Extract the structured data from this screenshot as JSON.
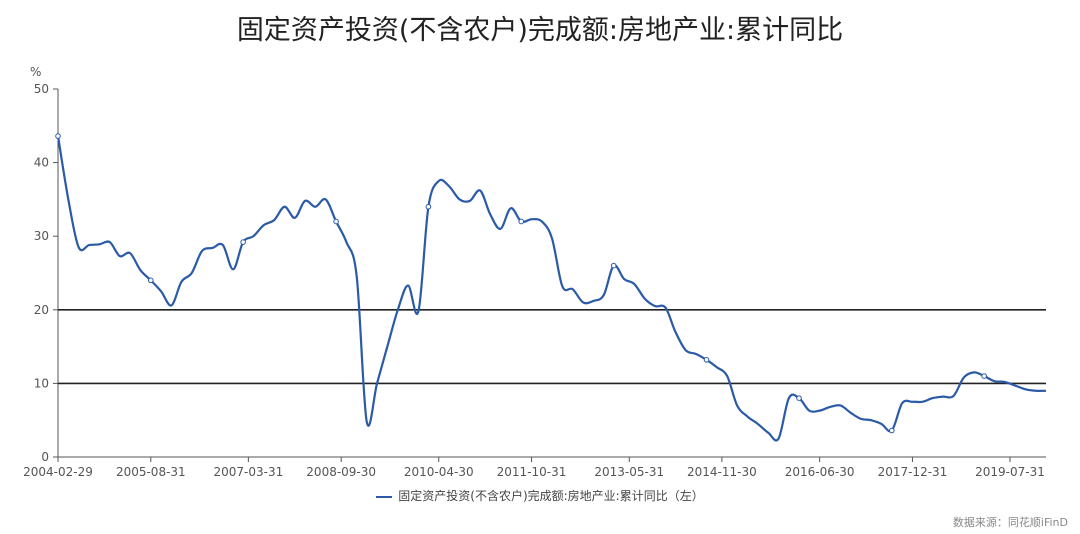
{
  "title": "固定资产投资(不含农户)完成额:房地产业:累计同比",
  "source": "数据来源：同花顺iFinD",
  "chart_data": {
    "type": "line",
    "ylabel": "%",
    "ylim": [
      0,
      50
    ],
    "yticks": [
      0,
      10,
      20,
      30,
      40,
      50
    ],
    "xlim": [
      "2004-02-29",
      "2020-02-29"
    ],
    "xticks": [
      "2004-02-29",
      "2005-08-31",
      "2007-03-31",
      "2008-09-30",
      "2010-04-30",
      "2011-10-31",
      "2013-05-31",
      "2014-11-30",
      "2016-06-30",
      "2017-12-31",
      "2019-07-31"
    ],
    "reference_lines": [
      10,
      20
    ],
    "grid": false,
    "legend_position": "bottom-center",
    "series": [
      {
        "name": "固定资产投资(不含农户)完成额:房地产业:累计同比（左）",
        "color": "#2b5aa7",
        "x": [
          "2004-02-29",
          "2004-04-30",
          "2004-06-30",
          "2004-08-31",
          "2004-10-31",
          "2004-12-31",
          "2005-02-28",
          "2005-04-30",
          "2005-06-30",
          "2005-08-31",
          "2005-10-31",
          "2005-12-31",
          "2006-02-28",
          "2006-04-30",
          "2006-06-30",
          "2006-08-31",
          "2006-10-31",
          "2006-12-31",
          "2007-02-28",
          "2007-04-30",
          "2007-06-30",
          "2007-08-31",
          "2007-10-31",
          "2007-12-31",
          "2008-02-29",
          "2008-04-30",
          "2008-06-30",
          "2008-08-31",
          "2008-10-31",
          "2008-12-31",
          "2009-02-28",
          "2009-04-30",
          "2009-06-30",
          "2009-08-31",
          "2009-10-31",
          "2009-12-31",
          "2010-02-28",
          "2010-04-30",
          "2010-06-30",
          "2010-08-31",
          "2010-10-31",
          "2010-12-31",
          "2011-02-28",
          "2011-04-30",
          "2011-06-30",
          "2011-08-31",
          "2011-10-31",
          "2011-12-31",
          "2012-02-29",
          "2012-04-30",
          "2012-06-30",
          "2012-08-31",
          "2012-10-31",
          "2012-12-31",
          "2013-02-28",
          "2013-04-30",
          "2013-06-30",
          "2013-08-31",
          "2013-10-31",
          "2013-12-31",
          "2014-02-28",
          "2014-04-30",
          "2014-06-30",
          "2014-08-31",
          "2014-10-31",
          "2014-12-31",
          "2015-02-28",
          "2015-04-30",
          "2015-06-30",
          "2015-08-31",
          "2015-10-31",
          "2015-12-31",
          "2016-02-29",
          "2016-04-30",
          "2016-06-30",
          "2016-08-31",
          "2016-10-31",
          "2016-12-31",
          "2017-02-28",
          "2017-04-30",
          "2017-06-30",
          "2017-08-31",
          "2017-10-31",
          "2017-12-31",
          "2018-02-28",
          "2018-04-30",
          "2018-06-30",
          "2018-08-31",
          "2018-10-31",
          "2018-12-31",
          "2019-02-28",
          "2019-04-30",
          "2019-06-30",
          "2019-08-31",
          "2019-10-31",
          "2019-12-31",
          "2020-02-29"
        ],
        "values": [
          43.6,
          35.0,
          28.5,
          28.8,
          28.9,
          29.2,
          27.3,
          27.7,
          25.4,
          24.0,
          22.5,
          20.6,
          23.8,
          25.0,
          28.0,
          28.4,
          28.8,
          25.5,
          29.2,
          30.0,
          31.5,
          32.2,
          34.0,
          32.5,
          34.8,
          34.0,
          35.0,
          32.0,
          29.2,
          24.5,
          4.8,
          10.0,
          15.0,
          20.0,
          23.3,
          19.8,
          34.0,
          37.5,
          36.8,
          35.0,
          34.8,
          36.2,
          33.0,
          31.0,
          33.8,
          32.0,
          32.3,
          32.0,
          29.7,
          23.2,
          22.8,
          21.0,
          21.2,
          22.0,
          26.0,
          24.2,
          23.5,
          21.5,
          20.5,
          20.3,
          17.0,
          14.5,
          14.0,
          13.2,
          12.2,
          11.0,
          7.0,
          5.5,
          4.5,
          3.3,
          2.5,
          8.0,
          8.0,
          6.3,
          6.3,
          6.8,
          7.0,
          6.0,
          5.2,
          5.0,
          4.5,
          3.6,
          7.3,
          7.5,
          7.5,
          8.0,
          8.2,
          8.3,
          10.8,
          11.5,
          11.0,
          10.3,
          10.2,
          9.7,
          9.2,
          9.0,
          9.0
        ]
      }
    ]
  }
}
